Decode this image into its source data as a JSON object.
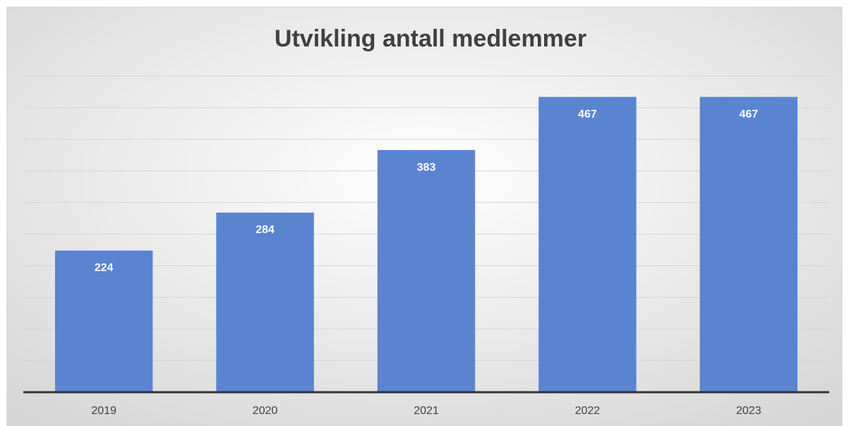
{
  "chart_data": {
    "type": "bar",
    "title": "Utvikling antall medlemmer",
    "categories": [
      "2019",
      "2020",
      "2021",
      "2022",
      "2023"
    ],
    "values": [
      224,
      284,
      383,
      467,
      467
    ],
    "color": "#5b84d0",
    "ylim": [
      0,
      500
    ],
    "yticks": [
      0,
      50,
      100,
      150,
      200,
      250,
      300,
      350,
      400,
      450,
      500
    ],
    "grid": true
  }
}
